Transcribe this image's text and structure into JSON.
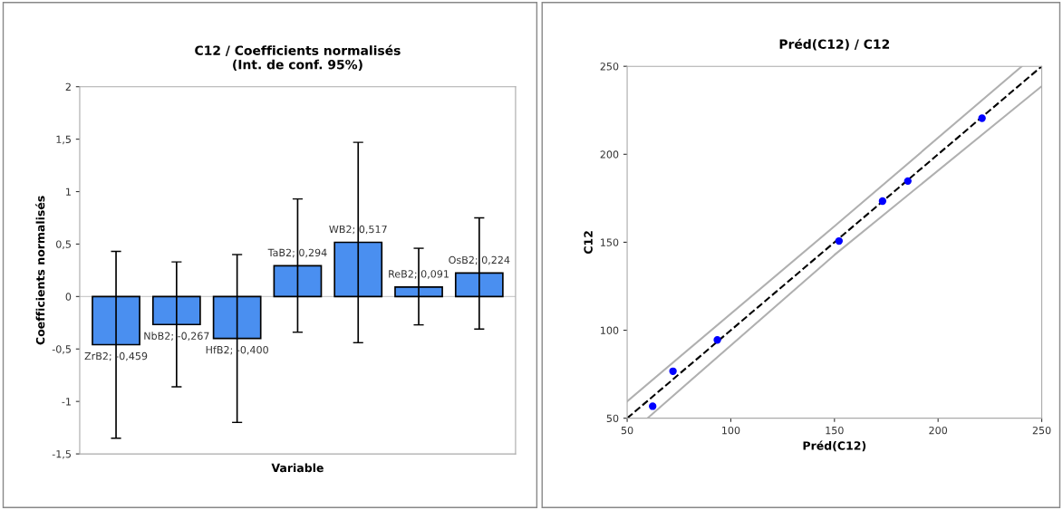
{
  "chart_data": [
    {
      "type": "bar",
      "title": "C12 / Coefficients normalisés\n(Int. de conf. 95%)",
      "xlabel": "Variable",
      "ylabel": "Coefficients normalisés",
      "categories": [
        null,
        null,
        null,
        null,
        null,
        null,
        null
      ],
      "values": [
        -0.459,
        -0.267,
        -0.4,
        0.294,
        0.517,
        0.091,
        0.224
      ],
      "value_labels": [
        "ZrB2; -0,459",
        "NbB2; -0,267",
        "HfB2; -0,400",
        "TaB2; 0,294",
        "WB2; 0,517",
        "ReB2; 0,091",
        "OsB2; 0,224"
      ],
      "errors": [
        [
          -1.35,
          0.43
        ],
        [
          -0.86,
          0.33
        ],
        [
          -1.2,
          0.4
        ],
        [
          -0.34,
          0.93
        ],
        [
          -0.44,
          1.47
        ],
        [
          -0.27,
          0.46
        ],
        [
          -0.31,
          0.75
        ]
      ],
      "color": "#4a8ff0",
      "ylim": [
        -1.5,
        2
      ],
      "yticks": [
        {
          "value": -1.5,
          "label": "-1,5"
        },
        -1,
        {
          "value": -0.5,
          "label": "-0,5"
        },
        0,
        {
          "value": 0.5,
          "label": "0,5"
        },
        1,
        {
          "value": 1.5,
          "label": "1,5"
        },
        2
      ],
      "ref_lines": [
        {
          "axis": "y",
          "value": 0,
          "color": "#cccccc",
          "line_style": "solid"
        }
      ],
      "grid": false
    },
    {
      "type": "scatter",
      "title": "Préd(C12) / C12",
      "xlabel": "Préd(C12)",
      "ylabel": "C12",
      "series": [
        {
          "type": "line",
          "color": "#b0b0b0",
          "line_style": "solid",
          "marker": "none",
          "x": [
            50,
            150,
            240.4
          ],
          "values": [
            59.6,
            159.1,
            250
          ]
        },
        {
          "type": "line",
          "color": "#b0b0b0",
          "line_style": "solid",
          "marker": "none",
          "x": [
            59.8,
            150,
            250
          ],
          "values": [
            50,
            142.8,
            238.7
          ]
        },
        {
          "type": "line",
          "color": "#000000",
          "line_style": "dashed",
          "marker": "none",
          "x": [
            50,
            250
          ],
          "values": [
            50,
            250
          ]
        },
        {
          "type": "scatter",
          "color": "#0000ff",
          "marker": "circle",
          "x": [
            62.3,
            72.1,
            93.5,
            152.2,
            173.2,
            185.4,
            221.2
          ],
          "values": [
            56.8,
            76.7,
            94.5,
            150.7,
            173.4,
            184.8,
            220.5
          ]
        }
      ],
      "xlim": [
        50,
        250
      ],
      "ylim": [
        50,
        250
      ],
      "xticks": [
        50,
        100,
        150,
        200,
        250
      ],
      "yticks": [
        50,
        100,
        150,
        200,
        250
      ],
      "grid": false
    }
  ]
}
